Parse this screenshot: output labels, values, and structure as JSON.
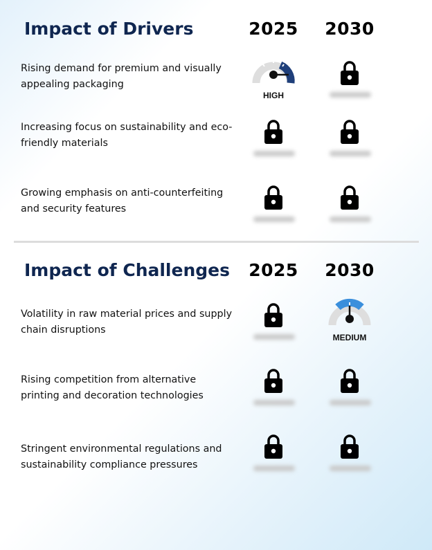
{
  "drivers": {
    "title": "Impact of Drivers",
    "years": [
      "2025",
      "2030"
    ],
    "rows": [
      {
        "label": "Rising demand for premium and visually appealing packaging",
        "cells": [
          {
            "type": "gauge",
            "level": "HIGH",
            "color": "#1f3f7a"
          },
          {
            "type": "locked"
          }
        ]
      },
      {
        "label": "Increasing focus on sustainability and eco-friendly materials",
        "cells": [
          {
            "type": "locked"
          },
          {
            "type": "locked"
          }
        ]
      },
      {
        "label": "Growing emphasis on anti-counterfeiting and security features",
        "cells": [
          {
            "type": "locked"
          },
          {
            "type": "locked"
          }
        ]
      }
    ]
  },
  "challenges": {
    "title": "Impact of Challenges",
    "years": [
      "2025",
      "2030"
    ],
    "rows": [
      {
        "label": "Volatility in raw material prices and supply chain disruptions",
        "cells": [
          {
            "type": "locked"
          },
          {
            "type": "gauge",
            "level": "MEDIUM",
            "color": "#3a8fdc"
          }
        ]
      },
      {
        "label": "Rising competition from alternative printing and decoration technologies",
        "cells": [
          {
            "type": "locked"
          },
          {
            "type": "locked"
          }
        ]
      },
      {
        "label": "Stringent environmental regulations and sustainability compliance pressures",
        "cells": [
          {
            "type": "locked"
          },
          {
            "type": "locked"
          }
        ]
      }
    ]
  },
  "icons": {
    "lock": "lock-icon",
    "gauge": "gauge-icon"
  },
  "colors": {
    "title": "#0f2650",
    "high": "#1f3f7a",
    "medium": "#3a8fdc",
    "gauge_track": "#dedede"
  }
}
